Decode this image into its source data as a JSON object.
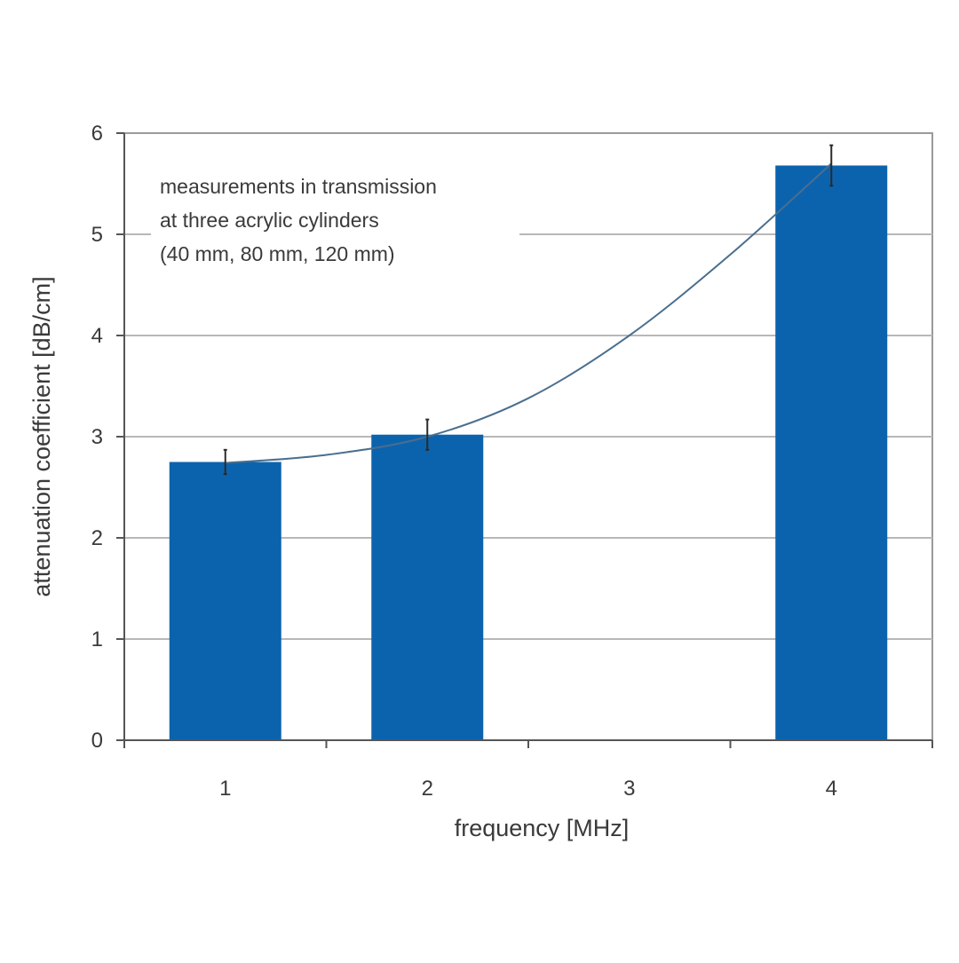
{
  "chart_data": {
    "type": "bar",
    "categories": [
      "1",
      "2",
      "3",
      "4"
    ],
    "values": [
      2.75,
      3.02,
      0,
      5.68
    ],
    "error_bars": [
      0.12,
      0.15,
      0,
      0.2
    ],
    "trendline": {
      "type": "polynomial",
      "points": [
        [
          1,
          2.74
        ],
        [
          1.5,
          2.82
        ],
        [
          2,
          3.0
        ],
        [
          2.5,
          3.38
        ],
        [
          3,
          4.0
        ],
        [
          3.5,
          4.8
        ],
        [
          4,
          5.7
        ]
      ]
    },
    "title": "",
    "xlabel": "frequency [MHz]",
    "ylabel": "attenuation coefficient [dB/cm]",
    "ylim": [
      0,
      6
    ],
    "yticks": [
      "0",
      "1",
      "2",
      "3",
      "4",
      "5",
      "6"
    ],
    "annotation": [
      "measurements in transmission",
      "at three acrylic cylinders",
      "(40 mm, 80 mm, 120 mm)"
    ],
    "grid": true,
    "legend": "none"
  },
  "colors": {
    "bar": "#0c63ad",
    "trendline": "#4a6e8e",
    "grid": "#b8b8b8",
    "axis": "#555555",
    "text": "#3a3a3a"
  }
}
